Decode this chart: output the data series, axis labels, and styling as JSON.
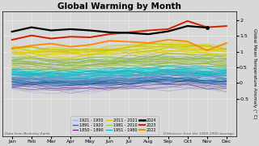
{
  "title": "Global Warming by Month",
  "ylabel": "Global Mean Temperature Anomaly (° C)",
  "xlabel_ticks": [
    "Jan",
    "Feb",
    "Mar",
    "Apr",
    "May",
    "Jun",
    "Jul",
    "Aug",
    "Sep",
    "Oct",
    "Nov",
    "Dec"
  ],
  "ylim": [
    -1.7,
    2.3
  ],
  "yticks": [
    2.0,
    1.5,
    1.0,
    0.5,
    0.0,
    -0.5
  ],
  "background_color": "#d8d8d8",
  "plot_bg": "#d8d8d8",
  "footer_left": "Data from Berkeley Earth",
  "footer_right": "Difference from the 1850-1900 average",
  "legend_cols": [
    [
      {
        "label": "1921 - 1950",
        "color": "#88bbee",
        "lw": 0.9
      },
      {
        "label": "1891 - 1920",
        "color": "#3355cc",
        "lw": 0.9
      },
      {
        "label": "1850 - 1890",
        "color": "#7722aa",
        "lw": 0.9
      }
    ],
    [
      {
        "label": "2011 - 2021",
        "color": "#cccc00",
        "lw": 0.9
      },
      {
        "label": "1981 - 2010",
        "color": "#88cc66",
        "lw": 0.9
      },
      {
        "label": "1951 - 1980",
        "color": "#00bbcc",
        "lw": 0.9
      }
    ],
    [
      {
        "label": "2024",
        "color": "#000000",
        "lw": 1.8
      },
      {
        "label": "2023",
        "color": "#cc2200",
        "lw": 1.5
      },
      {
        "label": "2022",
        "color": "#ff8800",
        "lw": 1.5
      }
    ]
  ],
  "era_params": [
    {
      "label": "1850-1890",
      "n": 22,
      "base": -0.08,
      "spread": 0.18,
      "samp": 0.05,
      "cmap": "Purples",
      "cmap_range": [
        0.35,
        0.85
      ],
      "alpha": 0.55,
      "lw": 0.5
    },
    {
      "label": "1891-1920",
      "n": 20,
      "base": 0.1,
      "spread": 0.12,
      "samp": 0.05,
      "cmap": "Blues",
      "cmap_range": [
        0.5,
        0.95
      ],
      "alpha": 0.6,
      "lw": 0.5
    },
    {
      "label": "1921-1950",
      "n": 20,
      "base": 0.22,
      "spread": 0.1,
      "samp": 0.06,
      "colors": [
        "#5599cc",
        "#6699cc",
        "#77aadd",
        "#88bbee",
        "#4488bb",
        "#5588cc",
        "#6699bb"
      ],
      "alpha": 0.65,
      "lw": 0.5
    },
    {
      "label": "1951-1980",
      "n": 20,
      "base": 0.38,
      "spread": 0.12,
      "samp": 0.06,
      "colors": [
        "#00aaaa",
        "#00bbbb",
        "#00cccc",
        "#11bbcc",
        "#00aabb",
        "#22cccc",
        "#11ccbb"
      ],
      "alpha": 0.65,
      "lw": 0.5
    },
    {
      "label": "1981-2010",
      "n": 20,
      "base": 0.68,
      "spread": 0.13,
      "samp": 0.07,
      "colors": [
        "#77aa33",
        "#88bb44",
        "#99cc55",
        "#aabb44",
        "#88aa33",
        "#99bb55",
        "#77bb44"
      ],
      "alpha": 0.7,
      "lw": 0.55
    },
    {
      "label": "2011-2021",
      "n": 16,
      "base": 1.02,
      "spread": 0.13,
      "samp": 0.07,
      "colors": [
        "#cccc00",
        "#ddcc00",
        "#ccbb00",
        "#dddd11",
        "#bbbb00",
        "#cccc22",
        "#dddd00"
      ],
      "alpha": 0.8,
      "lw": 0.6
    }
  ],
  "line_2024": [
    1.64,
    1.78,
    1.68,
    1.72,
    1.68,
    1.62,
    1.6,
    1.56,
    1.65,
    1.82,
    1.77
  ],
  "line_2023": [
    1.38,
    1.52,
    1.42,
    1.48,
    1.46,
    1.56,
    1.62,
    1.68,
    1.72,
    1.98,
    1.78,
    1.82
  ],
  "line_2022": [
    1.1,
    1.2,
    1.26,
    1.16,
    1.22,
    1.35,
    1.32,
    1.28,
    1.38,
    1.33,
    1.04,
    1.28
  ]
}
